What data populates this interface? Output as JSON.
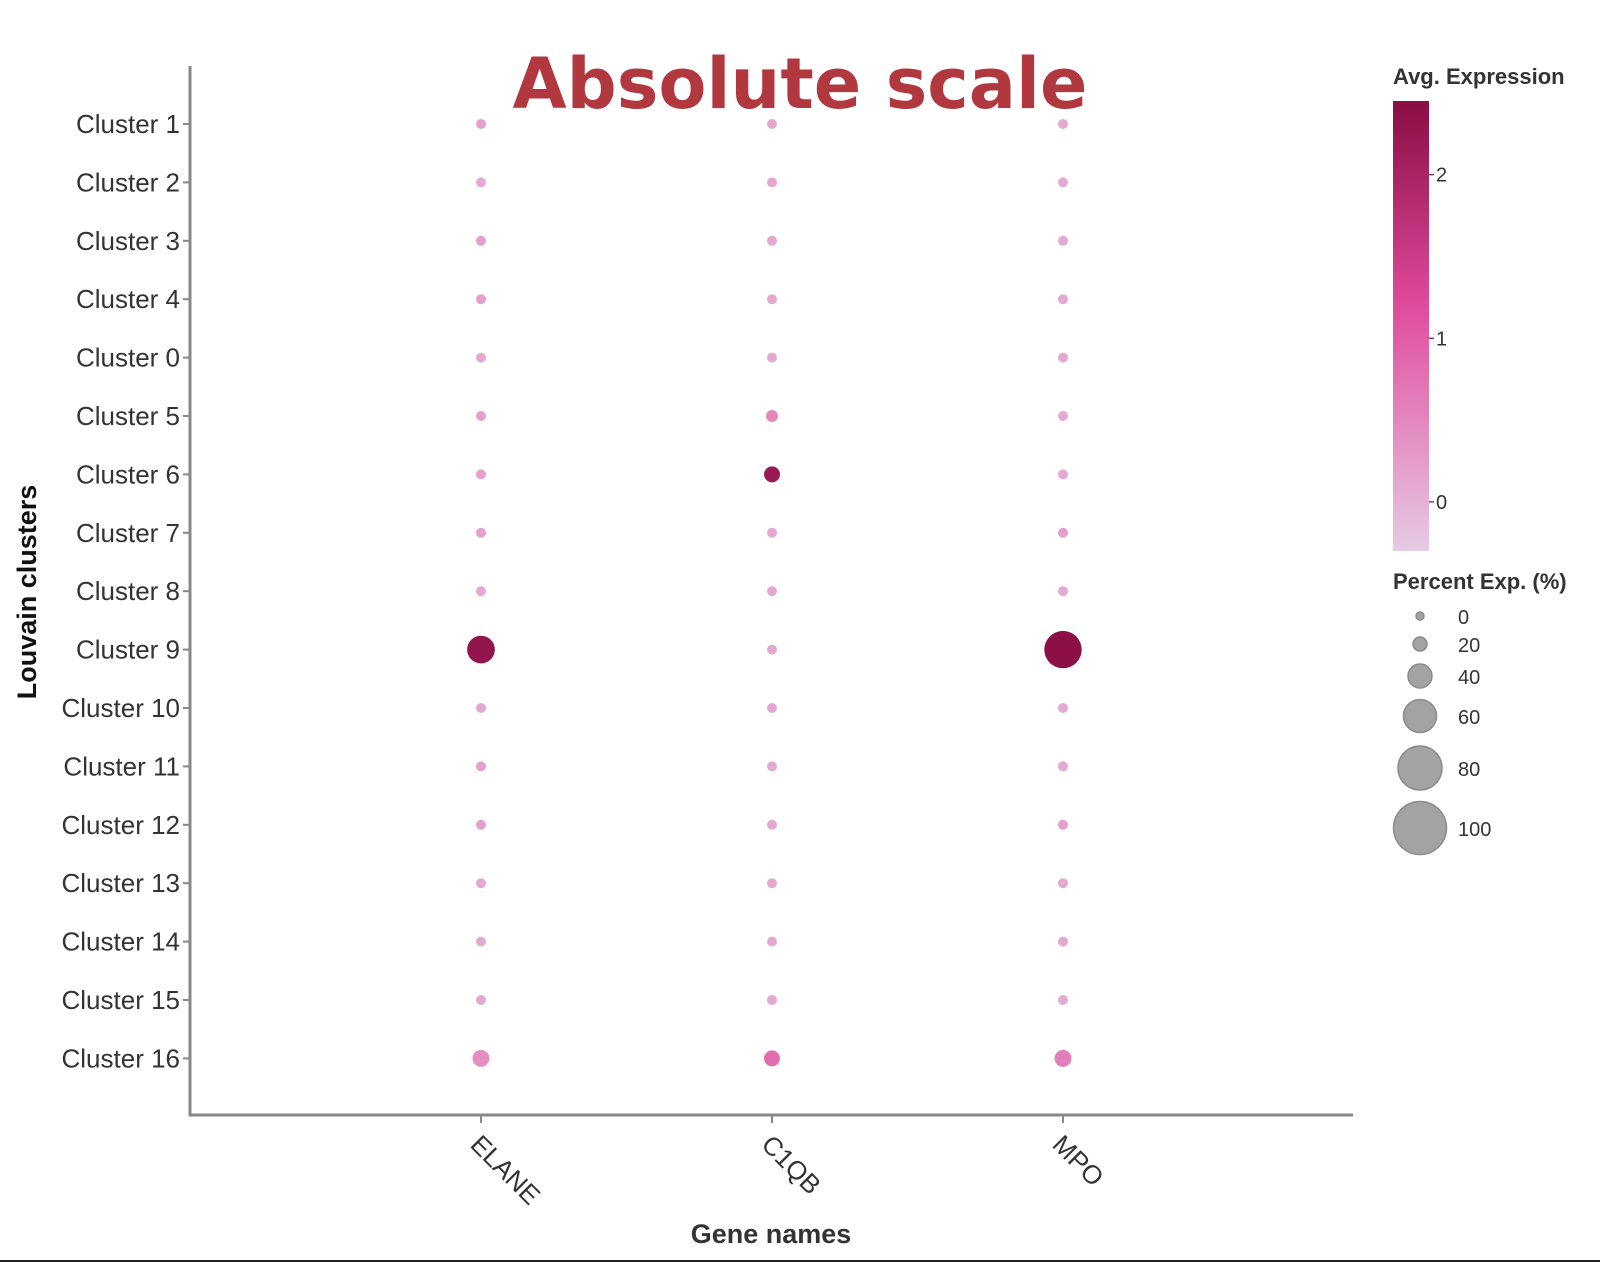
{
  "chart_data": {
    "type": "scatter",
    "title": "Absolute scale",
    "xlabel": "Gene names",
    "ylabel": "Louvain clusters",
    "categories_x": [
      "ELANE",
      "C1QB",
      "MPO"
    ],
    "categories_y": [
      "Cluster 1",
      "Cluster 2",
      "Cluster 3",
      "Cluster 4",
      "Cluster 0",
      "Cluster 5",
      "Cluster 6",
      "Cluster 7",
      "Cluster 8",
      "Cluster 9",
      "Cluster 10",
      "Cluster 11",
      "Cluster 12",
      "Cluster 13",
      "Cluster 14",
      "Cluster 15",
      "Cluster 16"
    ],
    "points": [
      {
        "x": "ELANE",
        "y": "Cluster 1",
        "avg_expression": 0.2,
        "percent_expressed": 1
      },
      {
        "x": "ELANE",
        "y": "Cluster 2",
        "avg_expression": 0.1,
        "percent_expressed": 1
      },
      {
        "x": "ELANE",
        "y": "Cluster 3",
        "avg_expression": 0.2,
        "percent_expressed": 1
      },
      {
        "x": "ELANE",
        "y": "Cluster 4",
        "avg_expression": 0.2,
        "percent_expressed": 1
      },
      {
        "x": "ELANE",
        "y": "Cluster 0",
        "avg_expression": 0.1,
        "percent_expressed": 1
      },
      {
        "x": "ELANE",
        "y": "Cluster 5",
        "avg_expression": 0.2,
        "percent_expressed": 1
      },
      {
        "x": "ELANE",
        "y": "Cluster 6",
        "avg_expression": 0.2,
        "percent_expressed": 1
      },
      {
        "x": "ELANE",
        "y": "Cluster 7",
        "avg_expression": 0.2,
        "percent_expressed": 1
      },
      {
        "x": "ELANE",
        "y": "Cluster 8",
        "avg_expression": 0.1,
        "percent_expressed": 1
      },
      {
        "x": "ELANE",
        "y": "Cluster 9",
        "avg_expression": 2.3,
        "percent_expressed": 22
      },
      {
        "x": "ELANE",
        "y": "Cluster 10",
        "avg_expression": 0.1,
        "percent_expressed": 1
      },
      {
        "x": "ELANE",
        "y": "Cluster 11",
        "avg_expression": 0.2,
        "percent_expressed": 1
      },
      {
        "x": "ELANE",
        "y": "Cluster 12",
        "avg_expression": 0.2,
        "percent_expressed": 1
      },
      {
        "x": "ELANE",
        "y": "Cluster 13",
        "avg_expression": 0.1,
        "percent_expressed": 1
      },
      {
        "x": "ELANE",
        "y": "Cluster 14",
        "avg_expression": 0.1,
        "percent_expressed": 1
      },
      {
        "x": "ELANE",
        "y": "Cluster 15",
        "avg_expression": 0.1,
        "percent_expressed": 1
      },
      {
        "x": "ELANE",
        "y": "Cluster 16",
        "avg_expression": 0.4,
        "percent_expressed": 6
      },
      {
        "x": "C1QB",
        "y": "Cluster 1",
        "avg_expression": 0.1,
        "percent_expressed": 1
      },
      {
        "x": "C1QB",
        "y": "Cluster 2",
        "avg_expression": 0.1,
        "percent_expressed": 1
      },
      {
        "x": "C1QB",
        "y": "Cluster 3",
        "avg_expression": 0.1,
        "percent_expressed": 1
      },
      {
        "x": "C1QB",
        "y": "Cluster 4",
        "avg_expression": 0.1,
        "percent_expressed": 1
      },
      {
        "x": "C1QB",
        "y": "Cluster 0",
        "avg_expression": 0.1,
        "percent_expressed": 1
      },
      {
        "x": "C1QB",
        "y": "Cluster 5",
        "avg_expression": 0.5,
        "percent_expressed": 2
      },
      {
        "x": "C1QB",
        "y": "Cluster 6",
        "avg_expression": 2.2,
        "percent_expressed": 5
      },
      {
        "x": "C1QB",
        "y": "Cluster 7",
        "avg_expression": 0.1,
        "percent_expressed": 1
      },
      {
        "x": "C1QB",
        "y": "Cluster 8",
        "avg_expression": 0.1,
        "percent_expressed": 1
      },
      {
        "x": "C1QB",
        "y": "Cluster 9",
        "avg_expression": 0.1,
        "percent_expressed": 1
      },
      {
        "x": "C1QB",
        "y": "Cluster 10",
        "avg_expression": 0.1,
        "percent_expressed": 1
      },
      {
        "x": "C1QB",
        "y": "Cluster 11",
        "avg_expression": 0.1,
        "percent_expressed": 1
      },
      {
        "x": "C1QB",
        "y": "Cluster 12",
        "avg_expression": 0.1,
        "percent_expressed": 1
      },
      {
        "x": "C1QB",
        "y": "Cluster 13",
        "avg_expression": 0.1,
        "percent_expressed": 1
      },
      {
        "x": "C1QB",
        "y": "Cluster 14",
        "avg_expression": 0.1,
        "percent_expressed": 1
      },
      {
        "x": "C1QB",
        "y": "Cluster 15",
        "avg_expression": 0.1,
        "percent_expressed": 1
      },
      {
        "x": "C1QB",
        "y": "Cluster 16",
        "avg_expression": 0.8,
        "percent_expressed": 5
      },
      {
        "x": "MPO",
        "y": "Cluster 1",
        "avg_expression": 0.1,
        "percent_expressed": 1
      },
      {
        "x": "MPO",
        "y": "Cluster 2",
        "avg_expression": 0.1,
        "percent_expressed": 1
      },
      {
        "x": "MPO",
        "y": "Cluster 3",
        "avg_expression": 0.1,
        "percent_expressed": 1
      },
      {
        "x": "MPO",
        "y": "Cluster 4",
        "avg_expression": 0.1,
        "percent_expressed": 1
      },
      {
        "x": "MPO",
        "y": "Cluster 0",
        "avg_expression": 0.1,
        "percent_expressed": 1
      },
      {
        "x": "MPO",
        "y": "Cluster 5",
        "avg_expression": 0.1,
        "percent_expressed": 1
      },
      {
        "x": "MPO",
        "y": "Cluster 6",
        "avg_expression": 0.1,
        "percent_expressed": 1
      },
      {
        "x": "MPO",
        "y": "Cluster 7",
        "avg_expression": 0.2,
        "percent_expressed": 1
      },
      {
        "x": "MPO",
        "y": "Cluster 8",
        "avg_expression": 0.1,
        "percent_expressed": 1
      },
      {
        "x": "MPO",
        "y": "Cluster 9",
        "avg_expression": 2.4,
        "percent_expressed": 45
      },
      {
        "x": "MPO",
        "y": "Cluster 10",
        "avg_expression": 0.1,
        "percent_expressed": 1
      },
      {
        "x": "MPO",
        "y": "Cluster 11",
        "avg_expression": 0.1,
        "percent_expressed": 1
      },
      {
        "x": "MPO",
        "y": "Cluster 12",
        "avg_expression": 0.2,
        "percent_expressed": 1
      },
      {
        "x": "MPO",
        "y": "Cluster 13",
        "avg_expression": 0.1,
        "percent_expressed": 1
      },
      {
        "x": "MPO",
        "y": "Cluster 14",
        "avg_expression": 0.1,
        "percent_expressed": 1
      },
      {
        "x": "MPO",
        "y": "Cluster 15",
        "avg_expression": 0.1,
        "percent_expressed": 1
      },
      {
        "x": "MPO",
        "y": "Cluster 16",
        "avg_expression": 0.6,
        "percent_expressed": 6
      }
    ],
    "color_legend": {
      "title": "Avg. Expression",
      "ticks": [
        "0",
        "1",
        "2"
      ],
      "range": [
        -0.3,
        2.45
      ],
      "low_color": "#e6cbe3",
      "mid_color": "#e04a9c",
      "high_color": "#880e43"
    },
    "size_legend": {
      "title": "Percent Exp. (%)",
      "ticks": [
        "0",
        "20",
        "40",
        "60",
        "80",
        "100"
      ],
      "color": "#a3a3a3"
    },
    "colors": {
      "title": "#b0383e",
      "axis": "#888888",
      "text": "#333333"
    },
    "grid": false,
    "legend_position": "right"
  }
}
